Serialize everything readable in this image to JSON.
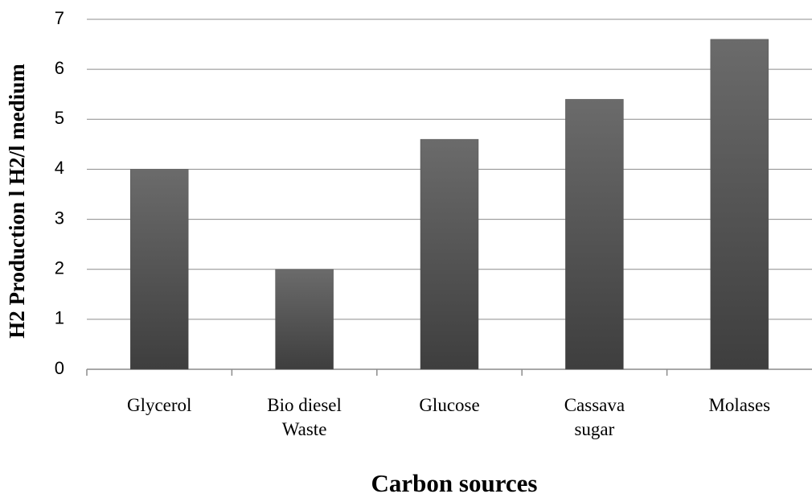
{
  "chart_data": {
    "type": "bar",
    "categories": [
      "Glycerol",
      "Bio diesel Waste",
      "Glucose",
      "Cassava sugar",
      "Molases"
    ],
    "values": [
      4.0,
      2.0,
      4.6,
      5.4,
      6.6
    ],
    "color": "#555555",
    "x_label": "Carbon sources",
    "y_label": "H2 Production l H2/l medium",
    "ylim": [
      0,
      7
    ],
    "yticks": [
      0,
      1,
      2,
      3,
      4,
      5,
      6,
      7
    ],
    "grid": true
  }
}
